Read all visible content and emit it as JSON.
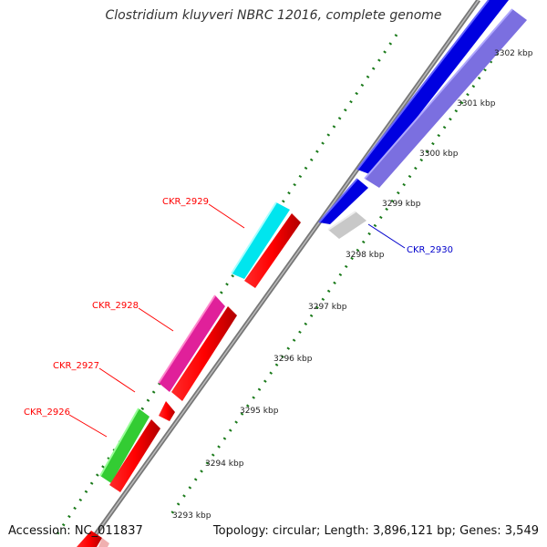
{
  "title": "Clostridium kluyveri NBRC 12016, complete genome",
  "accession": "Accession: NC_011837",
  "summary": "Topology: circular; Length: 3,896,121 bp; Genes: 3,549",
  "colors": {
    "backbone": "#8a8a8a",
    "ticks": "#1a7a1a",
    "label_forward": "#ff0000",
    "label_reverse": "#0000cc"
  },
  "ticks": [
    "3293 kbp",
    "3294 kbp",
    "3295 kbp",
    "3296 kbp",
    "3297 kbp",
    "3298 kbp",
    "3299 kbp",
    "3300 kbp",
    "3301 kbp",
    "3302 kbp"
  ],
  "gene_labels": [
    {
      "id": "CKR_2926",
      "text": "CKR_2926",
      "strand": "forward"
    },
    {
      "id": "CKR_2927",
      "text": "CKR_2927",
      "strand": "forward"
    },
    {
      "id": "CKR_2928",
      "text": "CKR_2928",
      "strand": "forward"
    },
    {
      "id": "CKR_2929",
      "text": "CKR_2929",
      "strand": "forward"
    },
    {
      "id": "CKR_2930",
      "text": "CKR_2930",
      "strand": "reverse"
    }
  ]
}
